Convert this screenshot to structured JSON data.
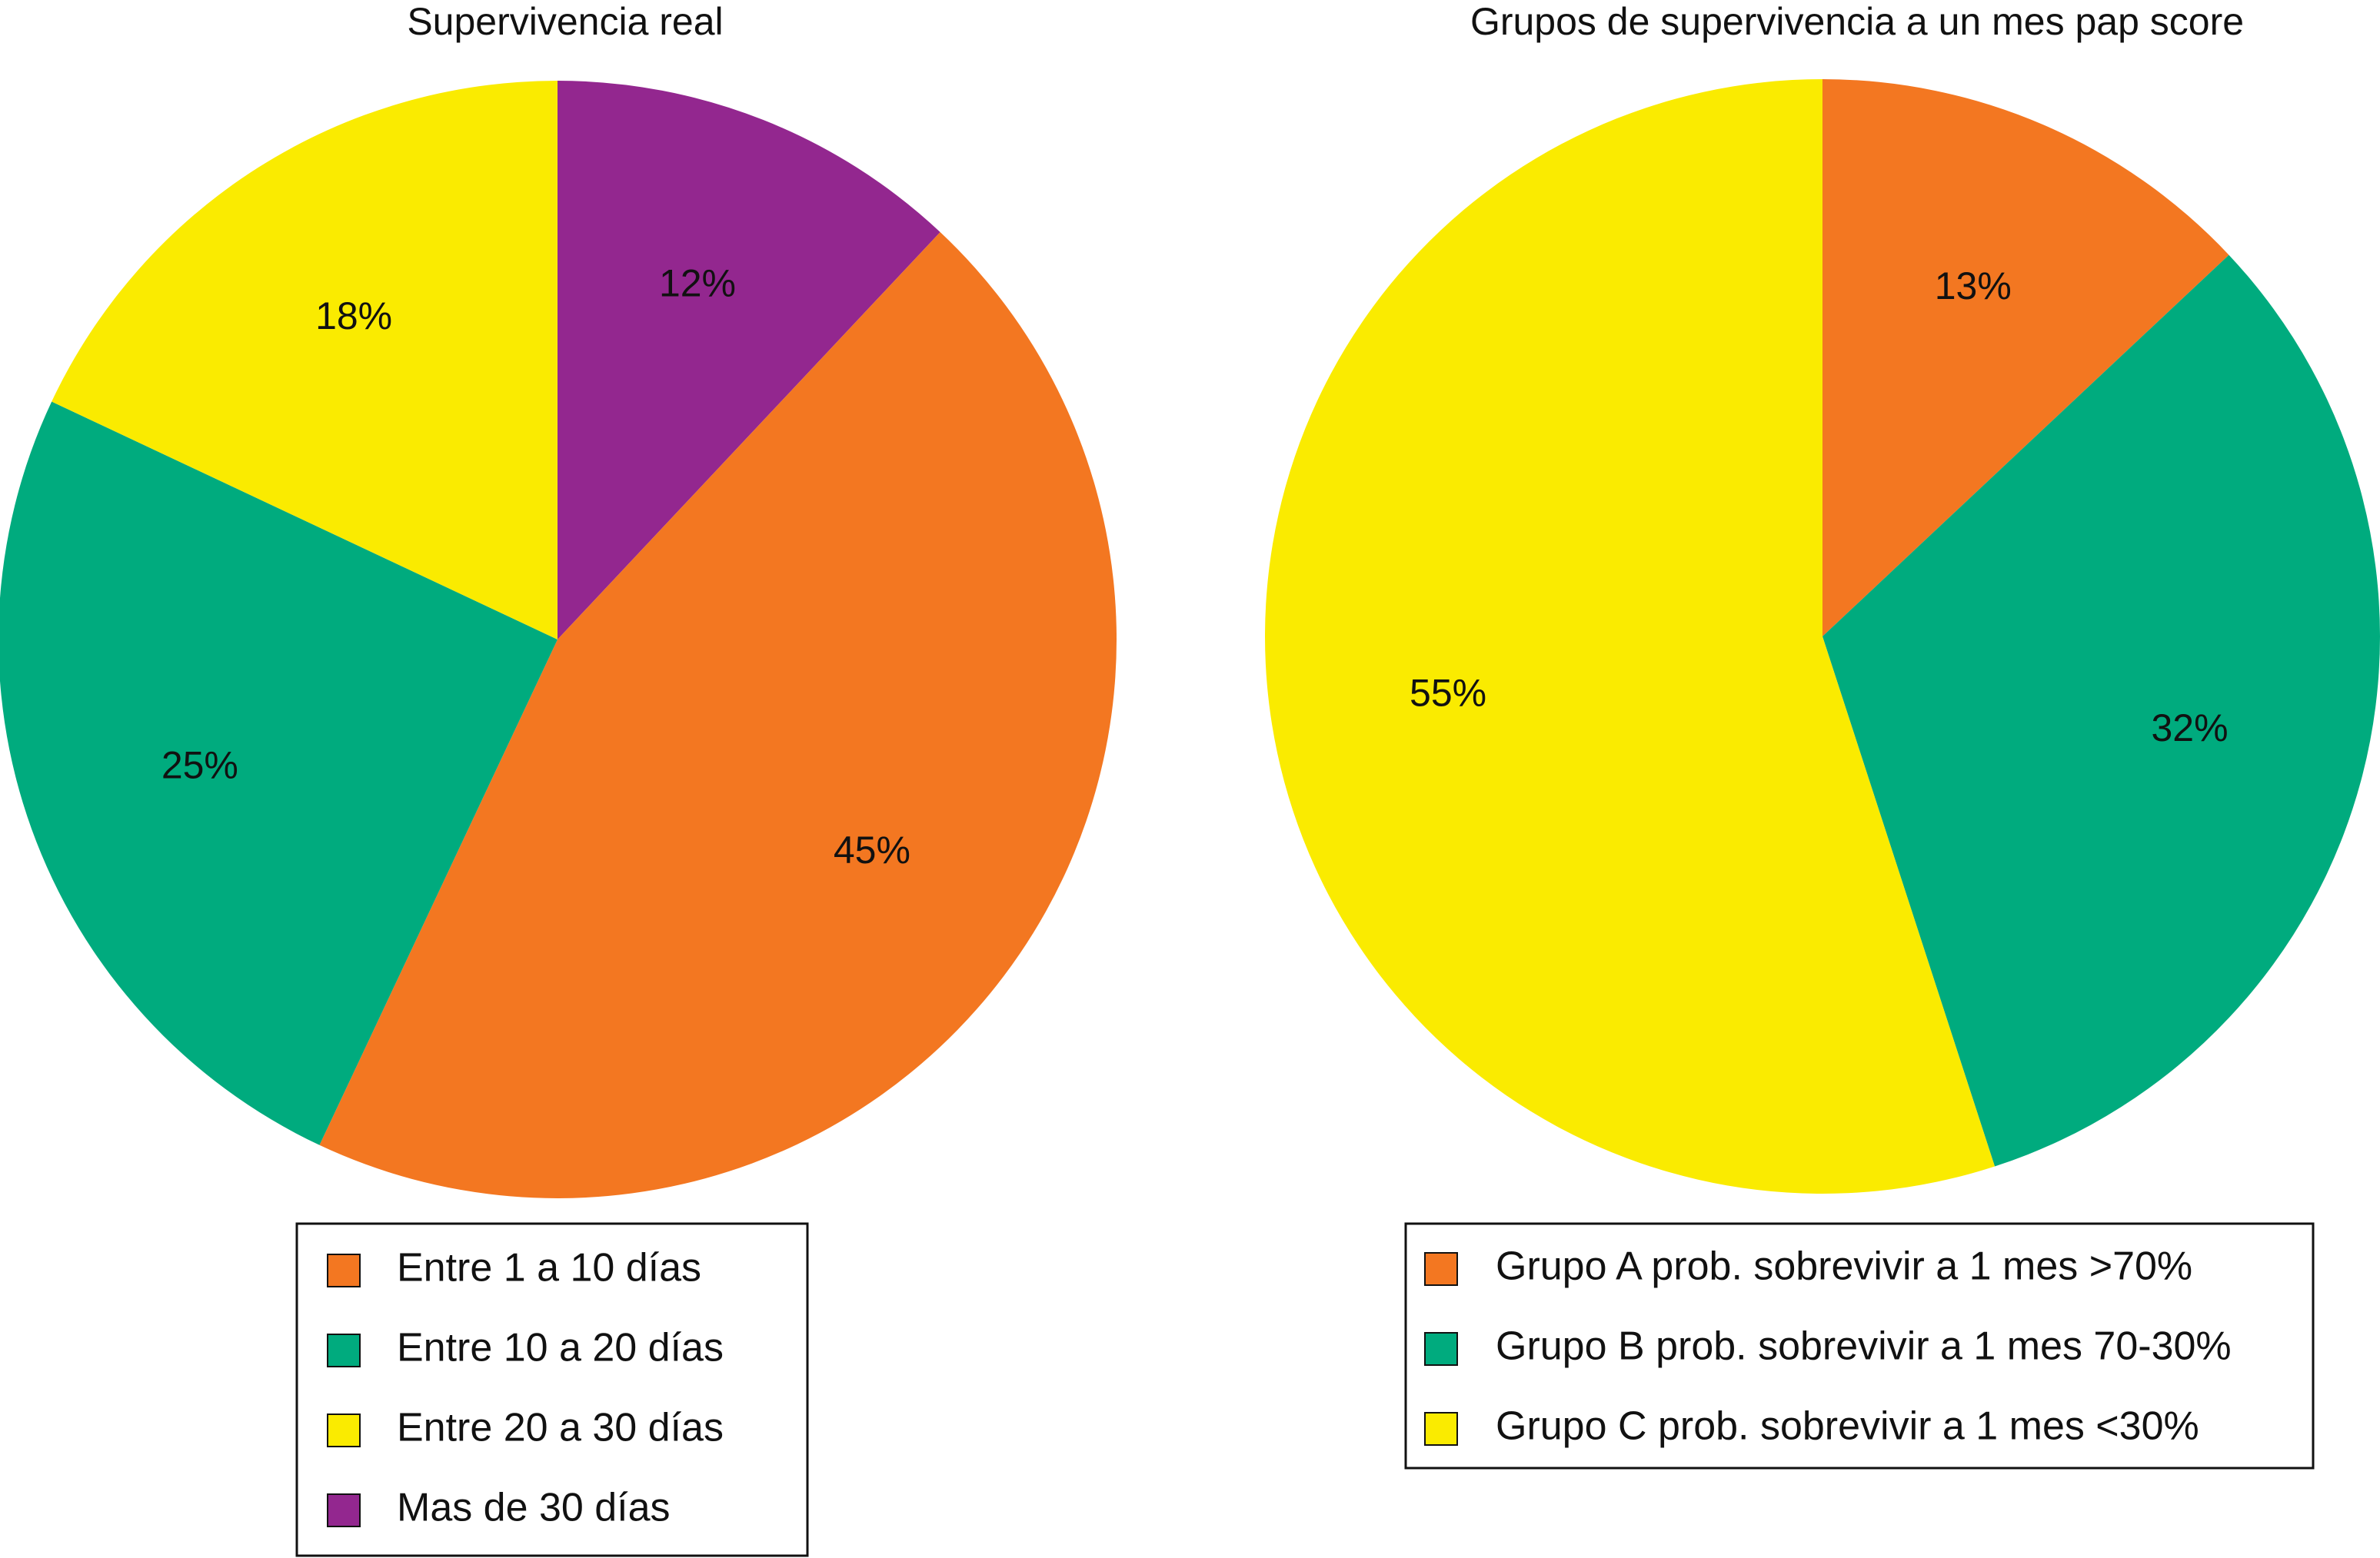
{
  "chart_data": [
    {
      "type": "pie",
      "title": "Supervivencia real",
      "start_angle_deg": 0,
      "direction": "clockwise",
      "legend_position": "bottom",
      "slices": [
        {
          "label": "Mas de 30 días",
          "value": 12,
          "display": "12%",
          "color": "#93278F"
        },
        {
          "label": "Entre 1 a 10 días",
          "value": 45,
          "display": "45%",
          "color": "#F37721"
        },
        {
          "label": "Entre 10 a 20 días",
          "value": 25,
          "display": "25%",
          "color": "#00AB7E"
        },
        {
          "label": "Entre 20 a 30 días",
          "value": 18,
          "display": "18%",
          "color": "#FAEB00"
        }
      ],
      "legend": [
        {
          "label": "Entre 1 a 10 días",
          "color": "#F37721"
        },
        {
          "label": "Entre 10 a 20 días",
          "color": "#00AB7E"
        },
        {
          "label": "Entre 20 a 30 días",
          "color": "#FAEB00"
        },
        {
          "label": "Mas de 30 días",
          "color": "#93278F"
        }
      ]
    },
    {
      "type": "pie",
      "title": "Grupos de supervivencia a un mes pap score",
      "start_angle_deg": 0,
      "direction": "clockwise",
      "legend_position": "bottom",
      "slices": [
        {
          "label": "Grupo A prob. sobrevivir a 1 mes >70%",
          "value": 13,
          "display": "13%",
          "color": "#F37721"
        },
        {
          "label": "Grupo B prob. sobrevivir a 1 mes 70-30%",
          "value": 32,
          "display": "32%",
          "color": "#00AB7E"
        },
        {
          "label": "Grupo C prob. sobrevivir a 1 mes <30%",
          "value": 55,
          "display": "55%",
          "color": "#FAEB00"
        }
      ],
      "legend": [
        {
          "label": "Grupo A prob. sobrevivir a 1 mes >70%",
          "color": "#F37721"
        },
        {
          "label": "Grupo B prob. sobrevivir a 1 mes 70-30%",
          "color": "#00AB7E"
        },
        {
          "label": "Grupo C prob. sobrevivir a 1 mes <30%",
          "color": "#FAEB00"
        }
      ]
    }
  ]
}
